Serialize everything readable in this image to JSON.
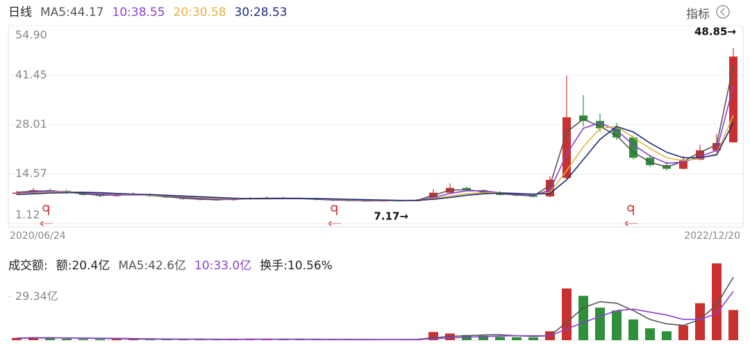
{
  "chart_data": [
    {
      "type": "candlestick",
      "title": "日线",
      "indicator_button": "指标",
      "legend_color": "#222",
      "x_labels": [
        "2020/06/24",
        "2022/12/20"
      ],
      "annotations": [
        "48.85→",
        "7.17→"
      ],
      "ylim": [
        1.12,
        54.9
      ],
      "yticks": [
        {
          "value": 54.9,
          "label": "54.90"
        },
        41.45,
        28.01,
        14.57,
        1.12
      ],
      "grid": true,
      "up_color": "#c8312f",
      "down_color": "#2f8f3a",
      "open": [
        9.2,
        9.5,
        10.2,
        10.0,
        9.4,
        8.9,
        8.6,
        9.0,
        9.1,
        8.6,
        8.2,
        7.8,
        7.6,
        7.5,
        7.8,
        8.0,
        8.1,
        8.0,
        7.9,
        7.6,
        7.4,
        7.3,
        7.2,
        7.3,
        7.2,
        7.6,
        9.5,
        10.8,
        10.2,
        9.6,
        8.9,
        8.8,
        8.5,
        13.5,
        30.5,
        29.0,
        27.0,
        24.5,
        19.0,
        17.0,
        16.0,
        18.5,
        21.0,
        23.2
      ],
      "high": [
        10.0,
        10.8,
        10.6,
        10.3,
        9.7,
        9.2,
        9.4,
        9.6,
        9.3,
        8.8,
        8.4,
        8.0,
        7.9,
        8.1,
        8.3,
        8.5,
        8.4,
        8.2,
        8.0,
        7.8,
        7.6,
        7.5,
        7.6,
        7.5,
        7.8,
        10.5,
        12.0,
        11.2,
        10.5,
        9.9,
        9.4,
        9.0,
        14.0,
        41.3,
        36.0,
        31.0,
        28.5,
        25.0,
        19.8,
        18.0,
        19.5,
        22.5,
        25.5,
        48.85
      ],
      "low": [
        8.9,
        9.3,
        9.6,
        9.2,
        8.7,
        8.3,
        8.4,
        8.8,
        8.4,
        8.0,
        7.6,
        7.4,
        7.3,
        7.3,
        7.6,
        7.8,
        7.8,
        7.7,
        7.4,
        7.2,
        7.2,
        7.2,
        7.2,
        7.17,
        7.2,
        7.5,
        9.3,
        9.9,
        9.4,
        8.7,
        8.5,
        8.2,
        8.3,
        13.0,
        27.5,
        26.0,
        23.8,
        18.5,
        16.5,
        15.5,
        15.8,
        18.3,
        20.5,
        23.0
      ],
      "close": [
        9.5,
        10.2,
        10.0,
        9.4,
        8.9,
        8.6,
        9.0,
        9.1,
        8.6,
        8.2,
        7.8,
        7.6,
        7.5,
        7.8,
        8.0,
        8.1,
        8.0,
        7.9,
        7.6,
        7.4,
        7.3,
        7.2,
        7.3,
        7.2,
        7.5,
        9.5,
        10.8,
        10.2,
        9.6,
        8.9,
        8.8,
        8.4,
        13.0,
        30.0,
        29.0,
        27.0,
        24.5,
        19.0,
        17.0,
        16.0,
        18.5,
        21.0,
        23.0,
        46.5
      ],
      "series": [
        {
          "name": "MA5:44.17",
          "color": "#555555",
          "values": [
            9.6,
            9.9,
            10.0,
            9.7,
            9.2,
            8.8,
            8.9,
            9.0,
            8.8,
            8.4,
            8.0,
            7.7,
            7.6,
            7.7,
            7.9,
            8.0,
            8.0,
            7.9,
            7.7,
            7.5,
            7.4,
            7.3,
            7.3,
            7.3,
            7.4,
            8.8,
            10.2,
            10.3,
            9.8,
            9.2,
            8.9,
            8.6,
            11.5,
            26.0,
            29.5,
            27.5,
            25.0,
            20.5,
            17.8,
            16.5,
            18.0,
            20.5,
            22.5,
            44.17
          ]
        },
        {
          "name": "10:38.55",
          "color": "#8a3fd1",
          "values": [
            9.4,
            9.7,
            9.9,
            9.8,
            9.5,
            9.1,
            8.9,
            8.9,
            8.9,
            8.6,
            8.3,
            8.0,
            7.8,
            7.7,
            7.8,
            7.9,
            8.0,
            8.0,
            7.8,
            7.6,
            7.5,
            7.4,
            7.3,
            7.3,
            7.4,
            8.2,
            9.3,
            10.0,
            10.0,
            9.5,
            9.1,
            8.8,
            10.2,
            20.0,
            27.0,
            28.5,
            26.5,
            22.5,
            19.5,
            17.5,
            17.8,
            19.3,
            21.0,
            38.55
          ]
        },
        {
          "name": "20:30.58",
          "color": "#e0b341",
          "values": [
            9.2,
            9.4,
            9.6,
            9.7,
            9.6,
            9.4,
            9.2,
            9.0,
            8.9,
            8.7,
            8.5,
            8.2,
            8.0,
            7.9,
            7.8,
            7.8,
            7.9,
            7.9,
            7.9,
            7.7,
            7.6,
            7.5,
            7.4,
            7.3,
            7.4,
            7.9,
            8.6,
            9.2,
            9.5,
            9.5,
            9.3,
            9.0,
            9.6,
            15.5,
            22.0,
            27.0,
            27.5,
            24.5,
            21.5,
            19.0,
            18.2,
            18.8,
            20.0,
            30.58
          ]
        },
        {
          "name": "30:28.53",
          "color": "#1b2a7a",
          "values": [
            9.0,
            9.2,
            9.4,
            9.5,
            9.6,
            9.5,
            9.3,
            9.1,
            9.0,
            8.8,
            8.6,
            8.4,
            8.2,
            8.0,
            7.9,
            7.9,
            7.9,
            7.9,
            7.9,
            7.8,
            7.7,
            7.6,
            7.5,
            7.4,
            7.4,
            7.7,
            8.2,
            8.8,
            9.2,
            9.4,
            9.3,
            9.1,
            9.3,
            13.0,
            18.5,
            24.0,
            27.5,
            26.0,
            23.0,
            20.5,
            19.0,
            19.0,
            19.8,
            28.53
          ]
        }
      ]
    },
    {
      "type": "bar",
      "title": "成交额:",
      "stats": [
        "额:20.4亿",
        "换手:10.56%"
      ],
      "legend_color": "#222",
      "ylim": [
        0,
        56.4
      ],
      "yticks": [
        {
          "value": 29.34,
          "label": "29.34亿"
        }
      ],
      "values": [
        1.5,
        2.0,
        1.6,
        1.0,
        0.8,
        0.7,
        0.9,
        0.8,
        0.6,
        0.6,
        0.5,
        0.5,
        0.5,
        0.6,
        0.7,
        0.6,
        0.5,
        0.5,
        0.5,
        0.4,
        0.4,
        0.4,
        0.4,
        0.5,
        0.6,
        5.5,
        4.5,
        3.5,
        3.0,
        2.2,
        2.0,
        1.8,
        6.0,
        35.0,
        30.0,
        22.0,
        20.0,
        14.0,
        8.0,
        6.0,
        10.0,
        25.0,
        52.0,
        20.4
      ],
      "series": [
        {
          "name": "MA5:42.6亿",
          "color": "#555555",
          "values": [
            1.4,
            1.6,
            1.7,
            1.5,
            1.4,
            1.2,
            1.0,
            0.8,
            0.8,
            0.7,
            0.7,
            0.6,
            0.5,
            0.5,
            0.6,
            0.6,
            0.6,
            0.6,
            0.5,
            0.5,
            0.5,
            0.4,
            0.4,
            0.4,
            0.5,
            1.6,
            2.5,
            3.0,
            3.5,
            3.7,
            3.0,
            2.5,
            3.0,
            12.0,
            22.0,
            26.0,
            25.0,
            20.0,
            14.0,
            11.0,
            10.0,
            14.0,
            24.0,
            42.6
          ]
        },
        {
          "name": "10:33.0亿",
          "color": "#8a3fd1",
          "values": [
            1.3,
            1.4,
            1.5,
            1.5,
            1.4,
            1.3,
            1.2,
            1.1,
            0.9,
            0.8,
            0.7,
            0.7,
            0.6,
            0.6,
            0.6,
            0.6,
            0.6,
            0.6,
            0.6,
            0.5,
            0.5,
            0.5,
            0.4,
            0.4,
            0.5,
            1.0,
            1.5,
            2.0,
            2.4,
            2.8,
            3.0,
            3.0,
            3.0,
            7.5,
            12.0,
            16.0,
            20.0,
            21.0,
            19.0,
            17.0,
            14.0,
            14.0,
            18.0,
            33.0
          ]
        }
      ]
    }
  ]
}
